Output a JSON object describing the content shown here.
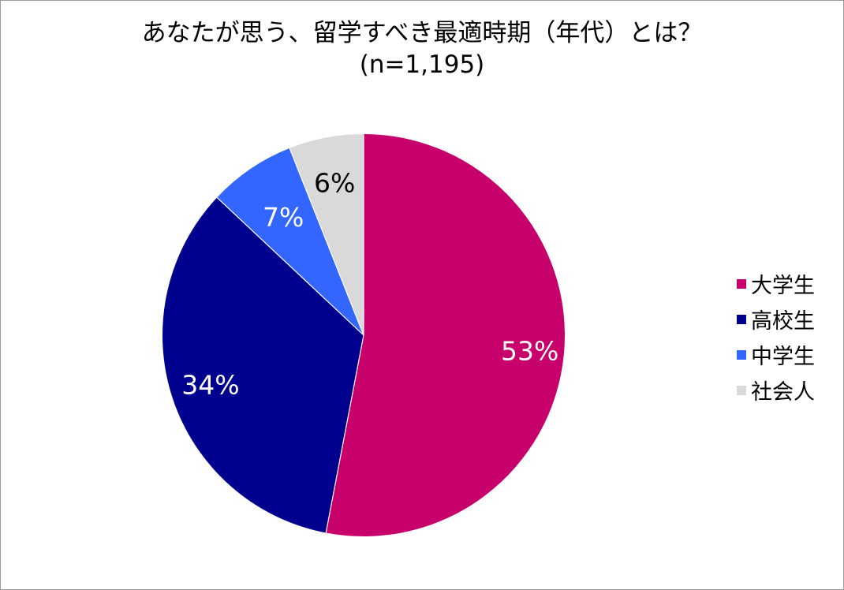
{
  "chart_data": {
    "type": "pie",
    "title": "あなたが思う、留学すべき最適時期（年代）とは？",
    "subtitle": "(n=1,195)",
    "categories": [
      "大学生",
      "高校生",
      "中学生",
      "社会人"
    ],
    "values": [
      53,
      34,
      7,
      6
    ],
    "labels": [
      "53%",
      "34%",
      "7%",
      "6%"
    ],
    "colors": [
      "#C8006B",
      "#00008F",
      "#3366FF",
      "#D9D9D9"
    ],
    "label_colors": [
      "#FFFFFF",
      "#FFFFFF",
      "#FFFFFF",
      "#000000"
    ],
    "start_angle_deg": 0,
    "direction": "clockwise",
    "legend_position": "right"
  }
}
